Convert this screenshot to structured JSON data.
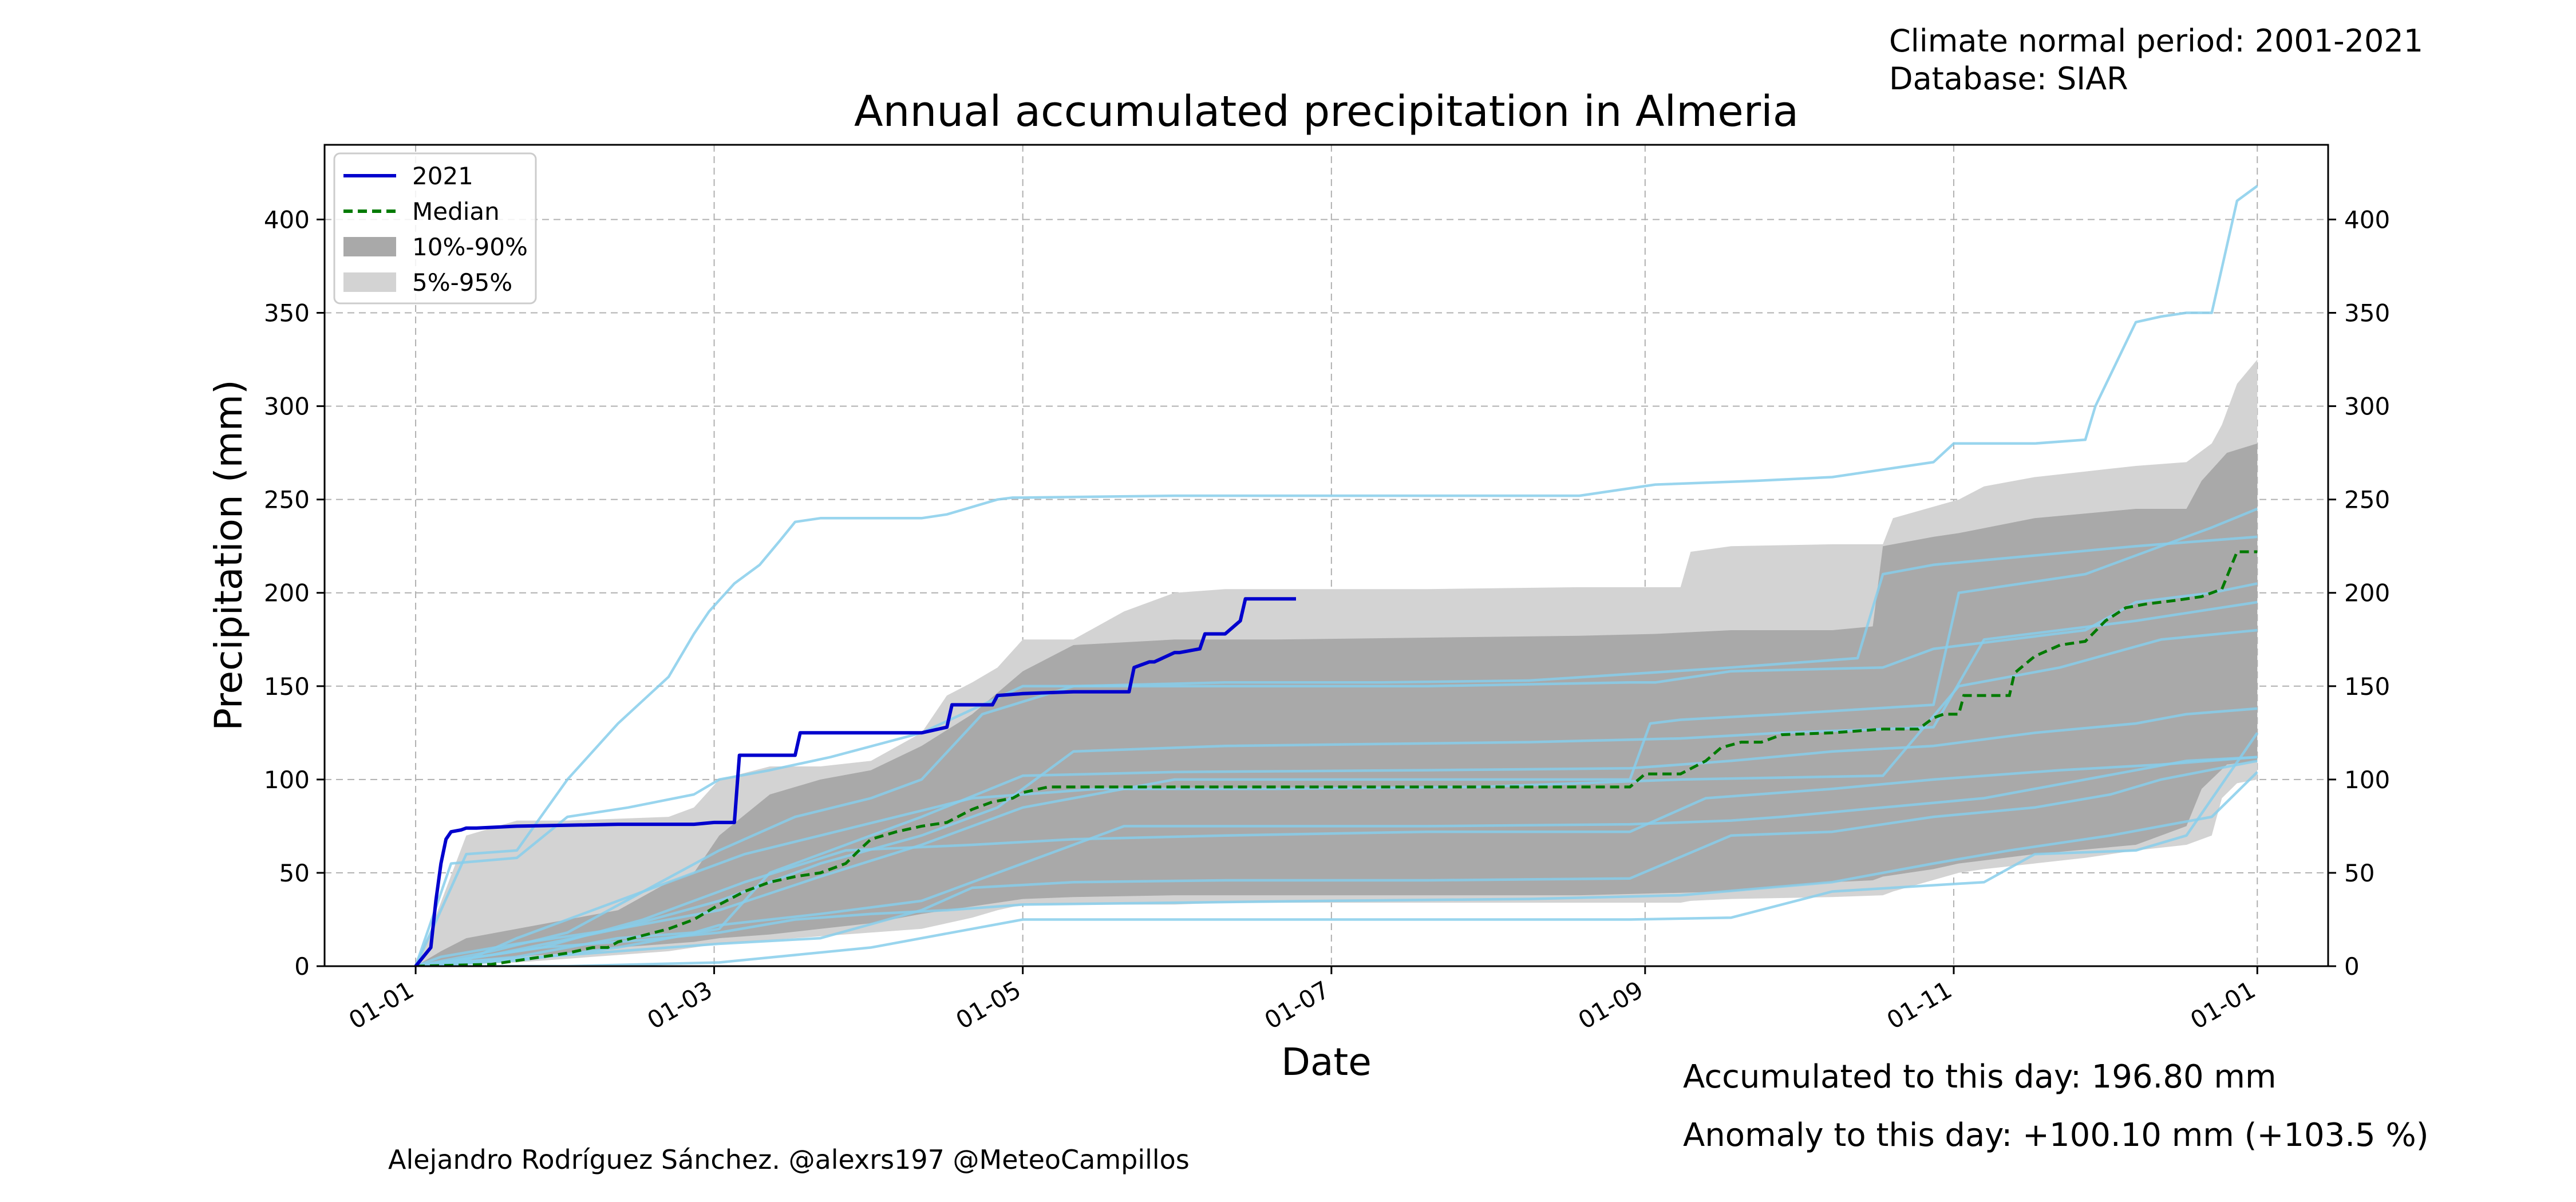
{
  "header": {
    "period_line": "Climate normal period: 2001-2021",
    "database_line": "Database: SIAR"
  },
  "footer": {
    "credit": "Alejandro Rodríguez Sánchez. @alexrs197 @MeteoCampillos",
    "accumulated_text": "Accumulated to this day: 196.80 mm",
    "anomaly_text": "Anomaly to this day: +100.10 mm (+103.5 %)",
    "anomaly_color": "#0000ff"
  },
  "chart_data": {
    "type": "line",
    "title": "Annual accumulated precipitation in Almeria",
    "xlabel": "Date",
    "ylabel": "Precipitation (mm)",
    "x_unit": "day-of-year",
    "xlim": [
      -18,
      378
    ],
    "ylim": [
      0,
      440
    ],
    "x_ticks": [
      {
        "label": "01-01",
        "day": 0
      },
      {
        "label": "01-03",
        "day": 59
      },
      {
        "label": "01-05",
        "day": 120
      },
      {
        "label": "01-07",
        "day": 181
      },
      {
        "label": "01-09",
        "day": 243
      },
      {
        "label": "01-11",
        "day": 304
      },
      {
        "label": "01-01",
        "day": 364
      }
    ],
    "y_ticks": [
      0,
      50,
      100,
      150,
      200,
      250,
      300,
      350,
      400
    ],
    "grid": true,
    "right_axis_mirror": true,
    "legend": {
      "position": "top-left",
      "entries": [
        {
          "label": "2021",
          "style": "solid",
          "color": "#0000cd"
        },
        {
          "label": "Median",
          "style": "dashed",
          "color": "#007a00"
        },
        {
          "label": "10%-90%",
          "style": "fill",
          "color": "#a9a9a9"
        },
        {
          "label": "5%-95%",
          "style": "fill",
          "color": "#d3d3d3"
        }
      ]
    },
    "colors": {
      "year_line": "#0000cd",
      "median": "#007a00",
      "band_10_90": "#a9a9a9",
      "band_5_95": "#d3d3d3",
      "history_lines": "#87ceeb"
    },
    "current_year": {
      "name": "2021",
      "x": [
        0,
        3,
        4,
        5,
        6,
        7,
        9,
        10,
        12,
        20,
        30,
        40,
        50,
        55,
        59,
        63,
        64,
        66,
        75,
        76,
        80,
        90,
        100,
        105,
        106,
        114,
        115,
        120,
        130,
        140,
        141,
        142,
        145,
        146,
        150,
        151,
        155,
        156,
        160,
        163,
        164,
        174
      ],
      "y": [
        0,
        10,
        35,
        55,
        68,
        72,
        73,
        74,
        74,
        75,
        75.5,
        76,
        76,
        76,
        77,
        77,
        113,
        113,
        113,
        125,
        125,
        125,
        125,
        128,
        140,
        140,
        145,
        146,
        147,
        147,
        147,
        160,
        163,
        163,
        168,
        168,
        170,
        178,
        178,
        185,
        196.8,
        196.8
      ]
    },
    "median": {
      "name": "Median",
      "x": [
        0,
        15,
        25,
        30,
        35,
        38,
        40,
        50,
        55,
        60,
        65,
        70,
        75,
        80,
        85,
        88,
        90,
        95,
        100,
        105,
        110,
        112,
        114,
        118,
        120,
        125,
        140,
        160,
        180,
        200,
        220,
        235,
        240,
        243,
        250,
        255,
        258,
        262,
        266,
        270,
        280,
        290,
        297,
        300,
        302,
        305,
        306,
        315,
        316,
        320,
        325,
        330,
        334,
        338,
        342,
        348,
        353,
        357,
        360,
        364
      ],
      "y": [
        0,
        1,
        5,
        7,
        10,
        10,
        13,
        20,
        25,
        33,
        40,
        45,
        48,
        50,
        55,
        63,
        68,
        72,
        75,
        77,
        84,
        86,
        88,
        90,
        93,
        96,
        96,
        96,
        96,
        96,
        96,
        96,
        96,
        103,
        103,
        110,
        117,
        120,
        120,
        124,
        125,
        127,
        127,
        133,
        135,
        135,
        145,
        145,
        157,
        166,
        172,
        174,
        185,
        192,
        194,
        196,
        198,
        202,
        222,
        222
      ]
    },
    "band_5_95": {
      "x": [
        0,
        3,
        10,
        20,
        30,
        50,
        55,
        60,
        70,
        80,
        90,
        100,
        105,
        110,
        115,
        120,
        130,
        140,
        150,
        160,
        180,
        200,
        230,
        250,
        252,
        260,
        280,
        290,
        292,
        305,
        310,
        320,
        330,
        340,
        350,
        355,
        357,
        360,
        364
      ],
      "upper": [
        0,
        20,
        70,
        78,
        78,
        80,
        85,
        100,
        107,
        107,
        110,
        125,
        145,
        152,
        160,
        175,
        175,
        190,
        200,
        202,
        202,
        202,
        203,
        203,
        222,
        225,
        226,
        226,
        240,
        250,
        257,
        262,
        265,
        268,
        270,
        280,
        290,
        312,
        325
      ],
      "lower": [
        0,
        0,
        1,
        2,
        4,
        8,
        10,
        12,
        14,
        16,
        18,
        20,
        23,
        26,
        30,
        33,
        33,
        33,
        33,
        34,
        34,
        34,
        34,
        34,
        35,
        36,
        37,
        38,
        40,
        50,
        52,
        55,
        58,
        62,
        65,
        70,
        90,
        98,
        100
      ]
    },
    "band_10_90": {
      "x": [
        0,
        5,
        10,
        20,
        30,
        40,
        50,
        55,
        60,
        70,
        80,
        90,
        100,
        110,
        120,
        130,
        150,
        170,
        200,
        230,
        245,
        260,
        280,
        288,
        290,
        300,
        305,
        320,
        340,
        350,
        353,
        358,
        364
      ],
      "upper": [
        0,
        8,
        15,
        20,
        25,
        30,
        45,
        50,
        70,
        92,
        100,
        105,
        118,
        135,
        158,
        172,
        175,
        175,
        176,
        177,
        178,
        180,
        180,
        182,
        225,
        230,
        232,
        240,
        245,
        245,
        260,
        275,
        280
      ],
      "lower": [
        0,
        1,
        3,
        5,
        7,
        10,
        12,
        13,
        15,
        17,
        20,
        23,
        28,
        32,
        36,
        37,
        38,
        38,
        38,
        38,
        39,
        40,
        45,
        46,
        48,
        52,
        55,
        60,
        65,
        75,
        95,
        108,
        110
      ]
    },
    "history_series": [
      {
        "x": [
          0,
          10,
          20,
          30,
          40,
          50,
          55,
          58,
          63,
          68,
          72,
          75,
          80,
          90,
          100,
          105,
          115,
          118,
          120,
          150,
          200,
          230,
          245,
          265,
          280,
          300,
          304,
          320,
          330,
          332,
          340,
          345,
          350,
          355,
          360,
          364
        ],
        "y": [
          0,
          60,
          62,
          100,
          130,
          155,
          178,
          190,
          205,
          215,
          228,
          238,
          240,
          240,
          240,
          242,
          250,
          251,
          251,
          252,
          252,
          252,
          258,
          260,
          262,
          270,
          280,
          280,
          282,
          300,
          345,
          348,
          350,
          350,
          410,
          418
        ]
      },
      {
        "x": [
          0,
          7,
          20,
          30,
          42,
          55,
          60,
          70,
          82,
          100,
          120,
          150,
          200,
          240,
          245,
          260,
          290,
          300,
          330,
          340,
          355,
          364
        ],
        "y": [
          0,
          55,
          58,
          80,
          85,
          92,
          100,
          105,
          112,
          125,
          150,
          150,
          150,
          152,
          152,
          158,
          160,
          170,
          180,
          195,
          200,
          205
        ]
      },
      {
        "x": [
          0,
          5,
          20,
          40,
          60,
          80,
          100,
          120,
          150,
          180,
          210,
          240,
          244,
          250,
          270,
          300,
          305,
          330,
          345,
          355,
          364
        ],
        "y": [
          0,
          5,
          12,
          20,
          30,
          48,
          65,
          85,
          100,
          100,
          100,
          100,
          130,
          132,
          135,
          140,
          200,
          210,
          225,
          235,
          245
        ]
      },
      {
        "x": [
          0,
          15,
          30,
          45,
          60,
          75,
          90,
          100,
          112,
          130,
          160,
          190,
          220,
          260,
          285,
          290,
          300,
          320,
          340,
          364
        ],
        "y": [
          0,
          8,
          18,
          40,
          62,
          80,
          90,
          100,
          135,
          150,
          152,
          152,
          153,
          160,
          165,
          210,
          215,
          220,
          225,
          230
        ]
      },
      {
        "x": [
          0,
          20,
          40,
          60,
          70,
          80,
          100,
          120,
          150,
          200,
          240,
          260,
          280,
          300,
          320,
          340,
          350,
          364
        ],
        "y": [
          0,
          3,
          10,
          20,
          50,
          60,
          80,
          102,
          104,
          105,
          106,
          110,
          115,
          118,
          125,
          130,
          135,
          138
        ]
      },
      {
        "x": [
          0,
          10,
          30,
          50,
          60,
          80,
          100,
          110,
          130,
          160,
          200,
          240,
          260,
          280,
          300,
          320,
          335,
          345,
          364
        ],
        "y": [
          0,
          2,
          6,
          10,
          12,
          15,
          30,
          42,
          45,
          46,
          46,
          47,
          70,
          72,
          80,
          85,
          92,
          100,
          110
        ]
      },
      {
        "x": [
          0,
          20,
          40,
          55,
          60,
          80,
          100,
          115,
          140,
          200,
          240,
          260,
          270,
          290,
          310,
          330,
          350,
          364
        ],
        "y": [
          0,
          5,
          15,
          18,
          22,
          28,
          35,
          50,
          75,
          75,
          76,
          78,
          80,
          85,
          90,
          100,
          110,
          112
        ]
      },
      {
        "x": [
          0,
          10,
          25,
          45,
          60,
          75,
          90,
          105,
          120,
          150,
          180,
          220,
          250,
          280,
          300,
          315,
          335,
          355,
          364
        ],
        "y": [
          0,
          4,
          10,
          14,
          18,
          25,
          28,
          30,
          33,
          34,
          35,
          36,
          38,
          45,
          55,
          62,
          70,
          80,
          104
        ]
      },
      {
        "x": [
          0,
          30,
          60,
          90,
          110,
          120,
          150,
          200,
          240,
          260,
          280,
          310,
          320,
          340,
          350,
          364
        ],
        "y": [
          0,
          0,
          2,
          10,
          20,
          25,
          25,
          25,
          25,
          26,
          40,
          45,
          60,
          62,
          70,
          125
        ]
      },
      {
        "x": [
          0,
          15,
          40,
          60,
          80,
          100,
          115,
          130,
          160,
          220,
          250,
          270,
          300,
          310,
          325,
          340,
          364
        ],
        "y": [
          0,
          6,
          20,
          35,
          55,
          70,
          85,
          115,
          118,
          120,
          122,
          125,
          128,
          175,
          180,
          185,
          195
        ]
      },
      {
        "x": [
          0,
          25,
          45,
          65,
          85,
          110,
          130,
          160,
          200,
          240,
          255,
          280,
          300,
          325,
          345,
          364
        ],
        "y": [
          0,
          10,
          25,
          45,
          62,
          65,
          68,
          70,
          72,
          72,
          90,
          95,
          100,
          105,
          108,
          112
        ]
      },
      {
        "x": [
          0,
          10,
          20,
          35,
          50,
          65,
          80,
          95,
          110,
          135,
          170,
          210,
          250,
          290,
          305,
          325,
          345,
          364
        ],
        "y": [
          0,
          3,
          15,
          30,
          45,
          60,
          70,
          80,
          90,
          95,
          95,
          96,
          100,
          102,
          150,
          160,
          175,
          180
        ]
      }
    ]
  }
}
